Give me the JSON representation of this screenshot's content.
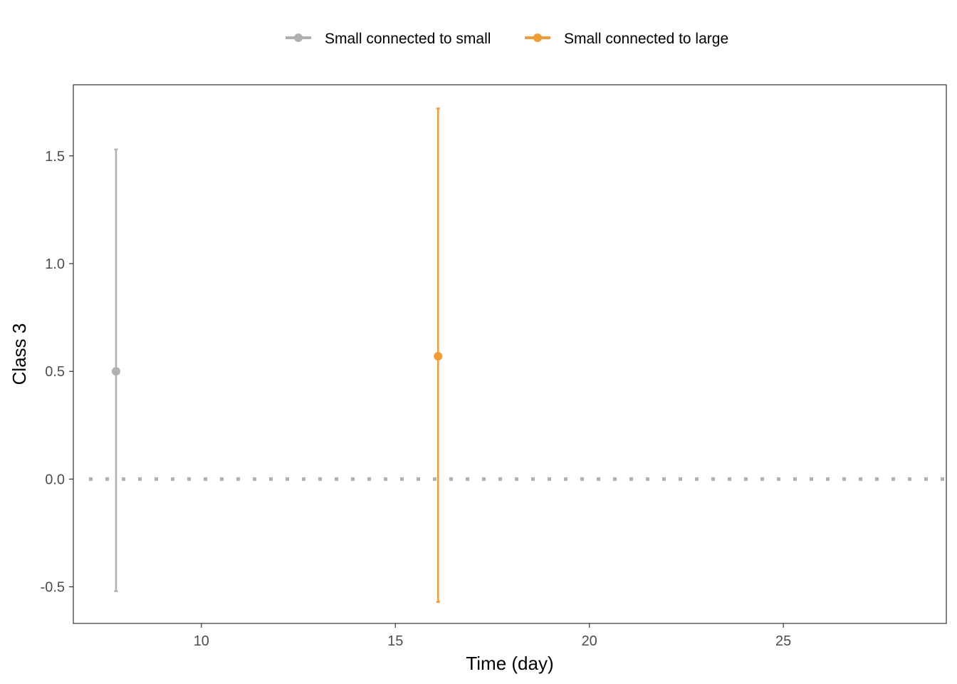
{
  "chart_data": {
    "type": "scatter",
    "xlabel": "Time (day)",
    "ylabel": "Class 3",
    "xlim": [
      6.7,
      29.2
    ],
    "ylim": [
      -0.67,
      1.83
    ],
    "x_ticks": [
      10,
      15,
      20,
      25
    ],
    "y_ticks": [
      -0.5,
      0.0,
      0.5,
      1.0,
      1.5
    ],
    "x_tick_labels": [
      "10",
      "15",
      "20",
      "25"
    ],
    "y_tick_labels": [
      "-0.5",
      "0.0",
      "0.5",
      "1.0",
      "1.5"
    ],
    "reference_line": {
      "y": 0,
      "style": "dotted",
      "color": "#b0b0b0"
    },
    "grid": false,
    "legend_position": "top",
    "series": [
      {
        "name": "Small connected to small",
        "color": "#b0b0b0",
        "points": [
          {
            "x": 7.8,
            "y": 0.5,
            "ymin": -0.52,
            "ymax": 1.53
          }
        ]
      },
      {
        "name": "Small connected to large",
        "color": "#f39c32",
        "points": [
          {
            "x": 16.1,
            "y": 0.57,
            "ymin": -0.57,
            "ymax": 1.72
          }
        ]
      }
    ]
  }
}
